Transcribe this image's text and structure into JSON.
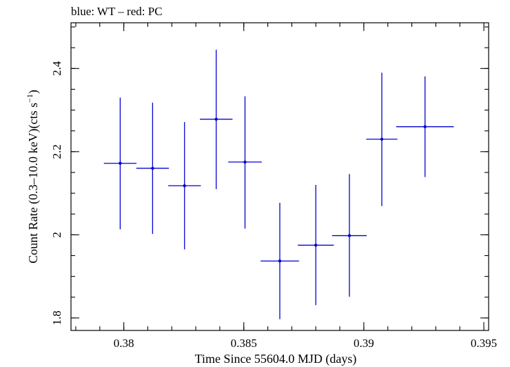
{
  "chart_data": {
    "type": "scatter",
    "title": "blue: WT – red: PC",
    "xlabel": "Time Since 55604.0 MJD (days)",
    "ylabel_main": "Count Rate (0.3–10.0 keV)(cts s",
    "ylabel_sup": "−1",
    "ylabel_close": ")",
    "xlim": [
      0.3778,
      0.3952
    ],
    "ylim": [
      1.77,
      2.51
    ],
    "x_ticks": [
      0.38,
      0.385,
      0.39,
      0.395
    ],
    "x_tick_labels": [
      "0.38",
      "0.385",
      "0.39",
      "0.395"
    ],
    "y_ticks": [
      1.8,
      2.0,
      2.2,
      2.4
    ],
    "y_tick_labels": [
      "1.8",
      "2",
      "2.2",
      "2.4"
    ],
    "x_minor_step": 0.001,
    "y_minor_step": 0.05,
    "grid": false,
    "series": [
      {
        "color": "#0000d0",
        "points": [
          {
            "x": 0.37985,
            "xerr": 0.00068,
            "y": 2.172,
            "ylo": 2.013,
            "yhi": 2.33
          },
          {
            "x": 0.3812,
            "xerr": 0.00068,
            "y": 2.16,
            "ylo": 2.002,
            "yhi": 2.318
          },
          {
            "x": 0.38253,
            "xerr": 0.00068,
            "y": 2.118,
            "ylo": 1.965,
            "yhi": 2.271
          },
          {
            "x": 0.38385,
            "xerr": 0.00068,
            "y": 2.278,
            "ylo": 2.11,
            "yhi": 2.445
          },
          {
            "x": 0.38505,
            "xerr": 0.0007,
            "y": 2.175,
            "ylo": 2.015,
            "yhi": 2.333
          },
          {
            "x": 0.3865,
            "xerr": 0.0008,
            "y": 1.937,
            "ylo": 1.797,
            "yhi": 2.077
          },
          {
            "x": 0.388,
            "xerr": 0.00075,
            "y": 1.975,
            "ylo": 1.831,
            "yhi": 2.12
          },
          {
            "x": 0.3894,
            "xerr": 0.00072,
            "y": 1.998,
            "ylo": 1.851,
            "yhi": 2.146
          },
          {
            "x": 0.39075,
            "xerr": 0.00065,
            "y": 2.23,
            "ylo": 2.069,
            "yhi": 2.39
          },
          {
            "x": 0.39255,
            "xerr": 0.0012,
            "y": 2.26,
            "ylo": 2.139,
            "yhi": 2.381
          }
        ]
      }
    ]
  }
}
